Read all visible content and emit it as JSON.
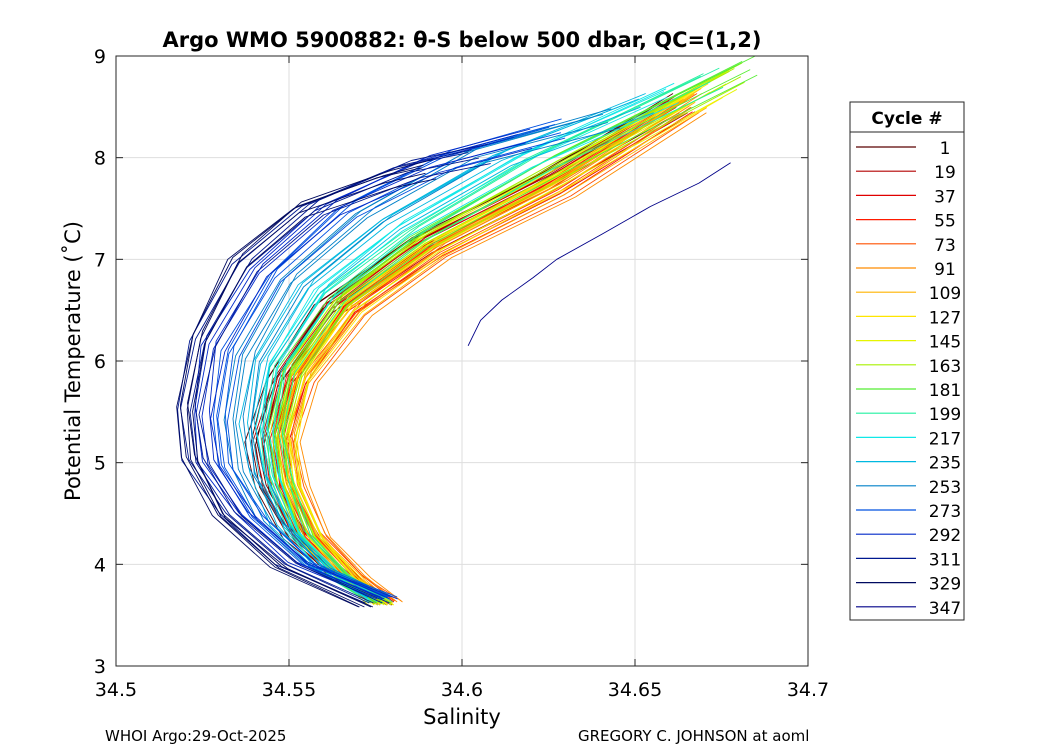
{
  "chart_data": {
    "type": "line",
    "title": "Argo WMO 5900882: θ-S below 500 dbar,  QC=(1,2)",
    "xlabel": "Salinity",
    "ylabel": "Potential Temperature (˚C)",
    "xlim": [
      34.5,
      34.7
    ],
    "ylim": [
      3,
      9
    ],
    "xticks": [
      34.5,
      34.55,
      34.6,
      34.65,
      34.7
    ],
    "xtick_labels": [
      "34.5",
      "34.55",
      "34.6",
      "34.65",
      "34.7"
    ],
    "yticks": [
      3,
      4,
      5,
      6,
      7,
      8,
      9
    ],
    "ytick_labels": [
      "3",
      "4",
      "5",
      "6",
      "7",
      "8",
      "9"
    ],
    "grid": true,
    "legend": {
      "title": "Cycle #",
      "placement": "outside-right",
      "entries": [
        {
          "label": "1",
          "color": "#5a0000"
        },
        {
          "label": "19",
          "color": "#b40000"
        },
        {
          "label": "37",
          "color": "#e00000"
        },
        {
          "label": "55",
          "color": "#ff1a00"
        },
        {
          "label": "73",
          "color": "#ff5000"
        },
        {
          "label": "91",
          "color": "#ff8c00"
        },
        {
          "label": "109",
          "color": "#ffb400"
        },
        {
          "label": "127",
          "color": "#ffe600"
        },
        {
          "label": "145",
          "color": "#e6f500"
        },
        {
          "label": "163",
          "color": "#a8f000"
        },
        {
          "label": "181",
          "color": "#55ee33"
        },
        {
          "label": "199",
          "color": "#20f0a0"
        },
        {
          "label": "217",
          "color": "#10e8e8"
        },
        {
          "label": "235",
          "color": "#00b8e0"
        },
        {
          "label": "253",
          "color": "#0080c8"
        },
        {
          "label": "273",
          "color": "#0050e0"
        },
        {
          "label": "292",
          "color": "#0028c8"
        },
        {
          "label": "311",
          "color": "#001890"
        },
        {
          "label": "329",
          "color": "#000a60"
        },
        {
          "label": "347",
          "color": "#000088"
        }
      ]
    },
    "series": [
      {
        "name": "1",
        "color": "#5a0000",
        "x": [
          34.578,
          34.565,
          34.551,
          34.542,
          34.54,
          34.545,
          34.56,
          34.585,
          34.62,
          34.66
        ],
        "y": [
          3.6,
          3.85,
          4.25,
          4.75,
          5.2,
          5.8,
          6.55,
          7.15,
          7.75,
          8.55
        ]
      },
      {
        "name": "19",
        "color": "#b40000",
        "x": [
          34.577,
          34.566,
          34.553,
          34.545,
          34.543,
          34.548,
          34.563,
          34.588,
          34.623,
          34.662
        ],
        "y": [
          3.62,
          3.87,
          4.27,
          4.77,
          5.22,
          5.82,
          6.55,
          7.15,
          7.75,
          8.55
        ]
      },
      {
        "name": "37",
        "color": "#e00000",
        "x": [
          34.577,
          34.567,
          34.555,
          34.548,
          34.546,
          34.551,
          34.566,
          34.59,
          34.625,
          34.664
        ],
        "y": [
          3.63,
          3.88,
          4.28,
          4.78,
          5.23,
          5.83,
          6.55,
          7.14,
          7.74,
          8.56
        ]
      },
      {
        "name": "55",
        "color": "#ff1a00",
        "x": [
          34.578,
          34.568,
          34.556,
          34.549,
          34.547,
          34.552,
          34.567,
          34.592,
          34.627,
          34.665
        ],
        "y": [
          3.64,
          3.89,
          4.29,
          4.79,
          5.24,
          5.84,
          6.53,
          7.12,
          7.73,
          8.56
        ]
      },
      {
        "name": "73",
        "color": "#ff5000",
        "x": [
          34.579,
          34.569,
          34.558,
          34.551,
          34.549,
          34.554,
          34.569,
          34.593,
          34.628,
          34.666
        ],
        "y": [
          3.64,
          3.89,
          4.3,
          4.8,
          5.25,
          5.85,
          6.52,
          7.11,
          7.72,
          8.55
        ]
      },
      {
        "name": "91",
        "color": "#ff8c00",
        "x": [
          34.579,
          34.57,
          34.559,
          34.552,
          34.55,
          34.555,
          34.57,
          34.594,
          34.629,
          34.667
        ],
        "y": [
          3.63,
          3.88,
          4.29,
          4.8,
          5.25,
          5.85,
          6.52,
          7.1,
          7.71,
          8.55
        ]
      },
      {
        "name": "109",
        "color": "#ffb400",
        "x": [
          34.578,
          34.569,
          34.558,
          34.551,
          34.549,
          34.554,
          34.569,
          34.593,
          34.628,
          34.668
        ],
        "y": [
          3.62,
          3.87,
          4.28,
          4.79,
          5.24,
          5.84,
          6.53,
          7.12,
          7.74,
          8.6
        ]
      },
      {
        "name": "127",
        "color": "#ffe600",
        "x": [
          34.578,
          34.568,
          34.557,
          34.551,
          34.549,
          34.553,
          34.568,
          34.592,
          34.628,
          34.672
        ],
        "y": [
          3.6,
          3.86,
          4.27,
          4.79,
          5.25,
          5.85,
          6.55,
          7.15,
          7.8,
          8.7
        ]
      },
      {
        "name": "145",
        "color": "#e6f500",
        "x": [
          34.577,
          34.567,
          34.556,
          34.55,
          34.548,
          34.552,
          34.566,
          34.59,
          34.627,
          34.676
        ],
        "y": [
          3.6,
          3.86,
          4.27,
          4.8,
          5.27,
          5.88,
          6.58,
          7.18,
          7.85,
          8.78
        ]
      },
      {
        "name": "163",
        "color": "#a8f000",
        "x": [
          34.577,
          34.566,
          34.555,
          34.549,
          34.547,
          34.551,
          34.565,
          34.589,
          34.627,
          34.68
        ],
        "y": [
          3.61,
          3.87,
          4.28,
          4.82,
          5.29,
          5.9,
          6.6,
          7.2,
          7.9,
          8.85
        ]
      },
      {
        "name": "181",
        "color": "#55ee33",
        "x": [
          34.576,
          34.565,
          34.554,
          34.548,
          34.546,
          34.55,
          34.564,
          34.588,
          34.626,
          34.683
        ],
        "y": [
          3.62,
          3.88,
          4.3,
          4.84,
          5.31,
          5.92,
          6.62,
          7.22,
          7.95,
          8.92
        ]
      },
      {
        "name": "199",
        "color": "#20f0a0",
        "x": [
          34.576,
          34.564,
          34.553,
          34.547,
          34.545,
          34.548,
          34.562,
          34.586,
          34.622,
          34.672
        ],
        "y": [
          3.63,
          3.9,
          4.32,
          4.86,
          5.33,
          5.94,
          6.65,
          7.26,
          7.98,
          8.8
        ]
      },
      {
        "name": "217",
        "color": "#10e8e8",
        "x": [
          34.575,
          34.562,
          34.551,
          34.545,
          34.543,
          34.546,
          34.56,
          34.583,
          34.618,
          34.66
        ],
        "y": [
          3.65,
          3.92,
          4.34,
          4.88,
          5.35,
          5.96,
          6.7,
          7.32,
          8.0,
          8.65
        ]
      },
      {
        "name": "235",
        "color": "#00b8e0",
        "x": [
          34.576,
          34.56,
          34.548,
          34.541,
          34.539,
          34.542,
          34.556,
          34.579,
          34.612,
          34.652
        ],
        "y": [
          3.67,
          3.95,
          4.38,
          4.9,
          5.38,
          6.0,
          6.75,
          7.38,
          8.02,
          8.55
        ]
      },
      {
        "name": "253",
        "color": "#0080c8",
        "x": [
          34.577,
          34.558,
          34.545,
          34.537,
          34.535,
          34.538,
          34.551,
          34.573,
          34.604,
          34.642
        ],
        "y": [
          3.68,
          3.98,
          4.42,
          4.93,
          5.42,
          6.05,
          6.8,
          7.45,
          8.05,
          8.4
        ]
      },
      {
        "name": "273",
        "color": "#0050e0",
        "x": [
          34.579,
          34.556,
          34.541,
          34.532,
          34.53,
          34.533,
          34.546,
          34.567,
          34.596,
          34.628
        ],
        "y": [
          3.68,
          4.0,
          4.46,
          4.97,
          5.45,
          6.1,
          6.85,
          7.5,
          8.0,
          8.3
        ]
      },
      {
        "name": "292",
        "color": "#0028c8",
        "x": [
          34.578,
          34.553,
          34.537,
          34.527,
          34.525,
          34.528,
          34.541,
          34.562,
          34.59,
          34.618
        ],
        "y": [
          3.66,
          4.02,
          4.5,
          5.0,
          5.48,
          6.15,
          6.9,
          7.52,
          7.95,
          8.2
        ]
      },
      {
        "name": "311",
        "color": "#001890",
        "x": [
          34.575,
          34.55,
          34.533,
          34.523,
          34.521,
          34.525,
          34.537,
          34.557,
          34.584,
          34.605
        ],
        "y": [
          3.62,
          4.0,
          4.5,
          5.02,
          5.52,
          6.2,
          6.95,
          7.52,
          7.9,
          8.05
        ]
      },
      {
        "name": "329",
        "color": "#000a60",
        "x": [
          34.572,
          34.547,
          34.53,
          34.521,
          34.52,
          34.524,
          34.535,
          34.553,
          34.578,
          34.59
        ],
        "y": [
          3.58,
          3.97,
          4.48,
          5.05,
          5.55,
          6.25,
          7.0,
          7.5,
          7.8,
          7.9
        ]
      },
      {
        "name": "347",
        "color": "#000088",
        "x": [
          34.602,
          34.605,
          34.612,
          34.62,
          34.628,
          34.64,
          34.655,
          34.668,
          34.678
        ],
        "y": [
          6.15,
          6.4,
          6.6,
          6.82,
          7.0,
          7.25,
          7.52,
          7.75,
          7.95
        ]
      }
    ]
  },
  "footer": {
    "left": "WHOI Argo:29-Oct-2025",
    "right": "GREGORY C. JOHNSON at aoml"
  }
}
